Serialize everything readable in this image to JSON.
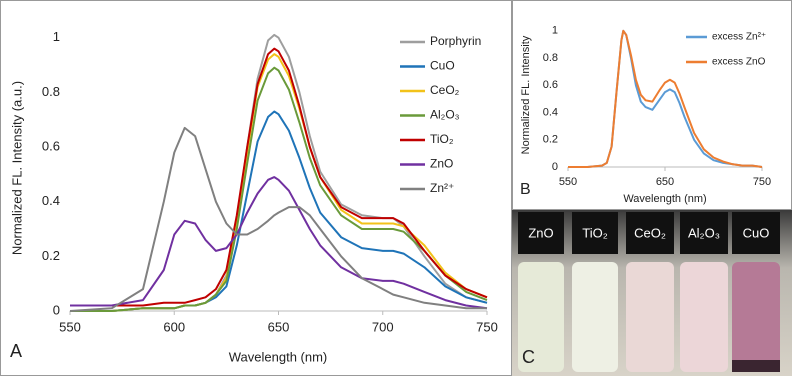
{
  "chart_data": [
    {
      "type": "line",
      "panel_label": "A",
      "x_label": "Wavelength (nm)",
      "y_label": "Normalized FL. Intensity (a.u.)",
      "x": [
        550,
        570,
        585,
        595,
        600,
        605,
        610,
        615,
        620,
        625,
        630,
        635,
        640,
        645,
        648,
        650,
        655,
        660,
        665,
        670,
        680,
        690,
        700,
        705,
        710,
        720,
        730,
        740,
        750
      ],
      "series": [
        {
          "name": "Porphyrin",
          "color": "#9e9e9e",
          "values": [
            0,
            0,
            0.01,
            0.01,
            0.01,
            0.02,
            0.02,
            0.03,
            0.06,
            0.13,
            0.33,
            0.6,
            0.85,
            0.99,
            1.01,
            1.0,
            0.93,
            0.8,
            0.64,
            0.51,
            0.39,
            0.35,
            0.34,
            0.34,
            0.31,
            0.2,
            0.1,
            0.05,
            0.03
          ]
        },
        {
          "name": "CuO",
          "color": "#1f74b8",
          "values": [
            0,
            0,
            0.01,
            0.01,
            0.01,
            0.02,
            0.02,
            0.03,
            0.05,
            0.09,
            0.24,
            0.43,
            0.62,
            0.71,
            0.73,
            0.72,
            0.66,
            0.56,
            0.45,
            0.36,
            0.27,
            0.23,
            0.22,
            0.22,
            0.21,
            0.16,
            0.09,
            0.05,
            0.03
          ]
        },
        {
          "name": "CeO₂",
          "color": "#f2c21a",
          "values": [
            0,
            0,
            0.01,
            0.01,
            0.01,
            0.02,
            0.02,
            0.03,
            0.06,
            0.12,
            0.32,
            0.58,
            0.82,
            0.92,
            0.94,
            0.93,
            0.86,
            0.74,
            0.6,
            0.49,
            0.37,
            0.32,
            0.32,
            0.32,
            0.31,
            0.24,
            0.14,
            0.08,
            0.05
          ]
        },
        {
          "name": "Al₂O₃",
          "color": "#6a9a3a",
          "values": [
            0,
            0,
            0.01,
            0.01,
            0.01,
            0.02,
            0.02,
            0.03,
            0.06,
            0.11,
            0.3,
            0.54,
            0.77,
            0.87,
            0.89,
            0.88,
            0.81,
            0.69,
            0.56,
            0.46,
            0.35,
            0.3,
            0.3,
            0.3,
            0.29,
            0.22,
            0.13,
            0.07,
            0.04
          ]
        },
        {
          "name": "TiO₂",
          "color": "#c00000",
          "values": [
            0.02,
            0.02,
            0.02,
            0.03,
            0.03,
            0.03,
            0.04,
            0.05,
            0.08,
            0.15,
            0.35,
            0.6,
            0.83,
            0.94,
            0.96,
            0.95,
            0.88,
            0.75,
            0.6,
            0.49,
            0.38,
            0.34,
            0.34,
            0.34,
            0.32,
            0.22,
            0.13,
            0.08,
            0.05
          ]
        },
        {
          "name": "ZnO",
          "color": "#7030a0",
          "values": [
            0.02,
            0.02,
            0.04,
            0.15,
            0.28,
            0.33,
            0.32,
            0.26,
            0.22,
            0.23,
            0.28,
            0.36,
            0.43,
            0.48,
            0.49,
            0.48,
            0.44,
            0.37,
            0.3,
            0.24,
            0.16,
            0.12,
            0.11,
            0.11,
            0.1,
            0.07,
            0.04,
            0.02,
            0.01
          ]
        },
        {
          "name": "Zn²⁺",
          "color": "#808080",
          "values": [
            0,
            0.01,
            0.08,
            0.4,
            0.58,
            0.67,
            0.64,
            0.52,
            0.4,
            0.32,
            0.28,
            0.28,
            0.3,
            0.33,
            0.35,
            0.36,
            0.38,
            0.38,
            0.35,
            0.3,
            0.2,
            0.12,
            0.08,
            0.06,
            0.05,
            0.03,
            0.02,
            0.01,
            0.01
          ]
        }
      ],
      "xlim": [
        550,
        750
      ],
      "xticks": [
        550,
        600,
        650,
        700,
        750
      ],
      "ylim": [
        0,
        1.05
      ],
      "yticks": [
        0,
        0.2,
        0.4,
        0.6,
        0.8,
        1
      ],
      "legend": "upper right"
    },
    {
      "type": "line",
      "panel_label": "B",
      "x_label": "Wavelength (nm)",
      "y_label": "Normalized FL. Intensity",
      "x": [
        550,
        570,
        585,
        590,
        595,
        600,
        605,
        607,
        610,
        615,
        620,
        625,
        630,
        637,
        645,
        650,
        655,
        660,
        665,
        670,
        680,
        690,
        700,
        710,
        720,
        730,
        740,
        750
      ],
      "series": [
        {
          "name": "excess Zn²⁺",
          "color": "#5b9bd5",
          "values": [
            0,
            0,
            0.01,
            0.03,
            0.15,
            0.55,
            0.93,
            1.0,
            0.97,
            0.8,
            0.6,
            0.48,
            0.44,
            0.42,
            0.5,
            0.55,
            0.57,
            0.55,
            0.47,
            0.37,
            0.2,
            0.1,
            0.05,
            0.03,
            0.02,
            0.01,
            0.01,
            0
          ]
        },
        {
          "name": "excess ZnO",
          "color": "#ed7d31",
          "values": [
            0,
            0,
            0.01,
            0.03,
            0.15,
            0.55,
            0.93,
            1.0,
            0.97,
            0.82,
            0.64,
            0.53,
            0.49,
            0.48,
            0.57,
            0.62,
            0.64,
            0.62,
            0.54,
            0.44,
            0.25,
            0.13,
            0.07,
            0.04,
            0.02,
            0.01,
            0.01,
            0
          ]
        }
      ],
      "xlim": [
        550,
        750
      ],
      "xticks": [
        550,
        650,
        750
      ],
      "ylim": [
        0,
        1.05
      ],
      "yticks": [
        0,
        0.2,
        0.4,
        0.6,
        0.8,
        1
      ],
      "legend": "upper right"
    }
  ],
  "photo": {
    "panel_label": "C",
    "vials": [
      "ZnO",
      "TiO₂",
      "CeO₂",
      "Al₂O₃",
      "CuO"
    ]
  }
}
